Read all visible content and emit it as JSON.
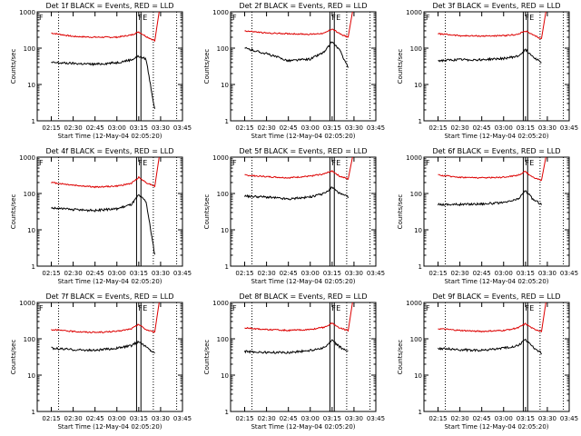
{
  "figure": {
    "shared": {
      "xlabel": "Start Time (12-May-04 02:05:20)",
      "ylabel": "Counts/sec",
      "xticks": [
        "02:15",
        "02:30",
        "02:45",
        "03:00",
        "03:15",
        "03:30",
        "03:45"
      ],
      "yticks": [
        "1",
        "10",
        "100",
        "1000"
      ],
      "corner_markers": [
        "F",
        "E"
      ],
      "colors": {
        "events": "#000000",
        "lld": "#dd0000",
        "axes": "#000000",
        "background": "#ffffff"
      }
    }
  },
  "chart_data": [
    {
      "type": "line",
      "title": "Det 1f BLACK = Events, RED = LLD",
      "xlabel": "Start Time (12-May-04 02:05:20)",
      "ylabel": "Counts/sec",
      "x_range": [
        "02:05",
        "03:45"
      ],
      "ylim": [
        1,
        1000
      ],
      "yscale": "log",
      "x": [
        "02:15",
        "02:30",
        "02:45",
        "03:00",
        "03:10",
        "03:15",
        "03:20",
        "03:26"
      ],
      "series": [
        {
          "name": "RED = LLD",
          "color": "#dd0000",
          "values": [
            260,
            210,
            200,
            200,
            230,
            280,
            210,
            160
          ]
        },
        {
          "name": "BLACK = Events",
          "color": "#000000",
          "values": [
            40,
            38,
            36,
            40,
            48,
            60,
            50,
            2
          ]
        }
      ],
      "markers": [
        "F",
        "E"
      ],
      "grid": false
    },
    {
      "type": "line",
      "title": "Det 2f BLACK = Events, RED = LLD",
      "xlabel": "Start Time (12-May-04 02:05:20)",
      "ylabel": "Counts/sec",
      "x_range": [
        "02:05",
        "03:45"
      ],
      "ylim": [
        1,
        1000
      ],
      "yscale": "log",
      "x": [
        "02:15",
        "02:30",
        "02:45",
        "03:00",
        "03:10",
        "03:15",
        "03:20",
        "03:26"
      ],
      "series": [
        {
          "name": "RED = LLD",
          "color": "#dd0000",
          "values": [
            300,
            260,
            250,
            240,
            260,
            340,
            250,
            200
          ]
        },
        {
          "name": "BLACK = Events",
          "color": "#000000",
          "values": [
            100,
            70,
            45,
            50,
            80,
            150,
            90,
            30
          ]
        }
      ],
      "markers": [
        "F",
        "E"
      ],
      "grid": false
    },
    {
      "type": "line",
      "title": "Det 3f BLACK = Events, RED = LLD",
      "xlabel": "Start Time (12-May-04 02:05:20)",
      "ylabel": "Counts/sec",
      "x_range": [
        "02:05",
        "03:45"
      ],
      "ylim": [
        1,
        1000
      ],
      "yscale": "log",
      "x": [
        "02:15",
        "02:30",
        "02:45",
        "03:00",
        "03:10",
        "03:15",
        "03:20",
        "03:26"
      ],
      "series": [
        {
          "name": "RED = LLD",
          "color": "#dd0000",
          "values": [
            250,
            220,
            215,
            220,
            240,
            300,
            230,
            180
          ]
        },
        {
          "name": "BLACK = Events",
          "color": "#000000",
          "values": [
            45,
            48,
            48,
            52,
            60,
            90,
            60,
            40
          ]
        }
      ],
      "markers": [
        "F",
        "E"
      ],
      "grid": false
    },
    {
      "type": "line",
      "title": "Det 4f BLACK = Events, RED = LLD",
      "xlabel": "Start Time (12-May-04 02:05:20)",
      "ylabel": "Counts/sec",
      "x_range": [
        "02:05",
        "03:45"
      ],
      "ylim": [
        1,
        1000
      ],
      "yscale": "log",
      "x": [
        "02:15",
        "02:30",
        "02:45",
        "03:00",
        "03:10",
        "03:15",
        "03:20",
        "03:26"
      ],
      "series": [
        {
          "name": "RED = LLD",
          "color": "#dd0000",
          "values": [
            200,
            170,
            150,
            160,
            190,
            280,
            200,
            160
          ]
        },
        {
          "name": "BLACK = Events",
          "color": "#000000",
          "values": [
            40,
            36,
            34,
            38,
            50,
            90,
            60,
            2
          ]
        }
      ],
      "markers": [
        "F",
        "E"
      ],
      "grid": false
    },
    {
      "type": "line",
      "title": "Det 5f BLACK = Events, RED = LLD",
      "xlabel": "Start Time (12-May-04 02:05:20)",
      "ylabel": "Counts/sec",
      "x_range": [
        "02:05",
        "03:45"
      ],
      "ylim": [
        1,
        1000
      ],
      "yscale": "log",
      "x": [
        "02:15",
        "02:30",
        "02:45",
        "03:00",
        "03:10",
        "03:15",
        "03:20",
        "03:26"
      ],
      "series": [
        {
          "name": "RED = LLD",
          "color": "#dd0000",
          "values": [
            320,
            290,
            270,
            300,
            350,
            420,
            300,
            250
          ]
        },
        {
          "name": "BLACK = Events",
          "color": "#000000",
          "values": [
            85,
            80,
            70,
            80,
            100,
            150,
            100,
            80
          ]
        }
      ],
      "markers": [
        "F",
        "E"
      ],
      "grid": false
    },
    {
      "type": "line",
      "title": "Det 6f BLACK = Events, RED = LLD",
      "xlabel": "Start Time (12-May-04 02:05:20)",
      "ylabel": "Counts/sec",
      "x_range": [
        "02:05",
        "03:45"
      ],
      "ylim": [
        1,
        1000
      ],
      "yscale": "log",
      "x": [
        "02:15",
        "02:30",
        "02:45",
        "03:00",
        "03:10",
        "03:15",
        "03:20",
        "03:26"
      ],
      "series": [
        {
          "name": "RED = LLD",
          "color": "#dd0000",
          "values": [
            320,
            280,
            270,
            280,
            320,
            400,
            280,
            230
          ]
        },
        {
          "name": "BLACK = Events",
          "color": "#000000",
          "values": [
            50,
            50,
            52,
            55,
            70,
            120,
            70,
            50
          ]
        }
      ],
      "markers": [
        "F",
        "E"
      ],
      "grid": false
    },
    {
      "type": "line",
      "title": "Det 7f BLACK = Events, RED = LLD",
      "xlabel": "Start Time (12-May-04 02:05:20)",
      "ylabel": "Counts/sec",
      "x_range": [
        "02:05",
        "03:45"
      ],
      "ylim": [
        1,
        1000
      ],
      "yscale": "log",
      "x": [
        "02:15",
        "02:30",
        "02:45",
        "03:00",
        "03:10",
        "03:15",
        "03:20",
        "03:26"
      ],
      "series": [
        {
          "name": "RED = LLD",
          "color": "#dd0000",
          "values": [
            180,
            160,
            150,
            160,
            190,
            250,
            180,
            150
          ]
        },
        {
          "name": "BLACK = Events",
          "color": "#000000",
          "values": [
            55,
            50,
            48,
            55,
            65,
            85,
            60,
            40
          ]
        }
      ],
      "markers": [
        "F",
        "E"
      ],
      "grid": false
    },
    {
      "type": "line",
      "title": "Det 8f BLACK = Events, RED = LLD",
      "xlabel": "Start Time (12-May-04 02:05:20)",
      "ylabel": "Counts/sec",
      "x_range": [
        "02:05",
        "03:45"
      ],
      "ylim": [
        1,
        1000
      ],
      "yscale": "log",
      "x": [
        "02:15",
        "02:30",
        "02:45",
        "03:00",
        "03:10",
        "03:15",
        "03:20",
        "03:26"
      ],
      "series": [
        {
          "name": "RED = LLD",
          "color": "#dd0000",
          "values": [
            200,
            180,
            170,
            180,
            210,
            270,
            200,
            170
          ]
        },
        {
          "name": "BLACK = Events",
          "color": "#000000",
          "values": [
            45,
            42,
            42,
            48,
            58,
            90,
            60,
            45
          ]
        }
      ],
      "markers": [
        "F",
        "E"
      ],
      "grid": false
    },
    {
      "type": "line",
      "title": "Det 9f BLACK = Events, RED = LLD",
      "xlabel": "Start Time (12-May-04 02:05:20)",
      "ylabel": "Counts/sec",
      "x_range": [
        "02:05",
        "03:45"
      ],
      "ylim": [
        1,
        1000
      ],
      "yscale": "log",
      "x": [
        "02:15",
        "02:30",
        "02:45",
        "03:00",
        "03:10",
        "03:15",
        "03:20",
        "03:26"
      ],
      "series": [
        {
          "name": "RED = LLD",
          "color": "#dd0000",
          "values": [
            190,
            170,
            160,
            170,
            200,
            260,
            190,
            160
          ]
        },
        {
          "name": "BLACK = Events",
          "color": "#000000",
          "values": [
            55,
            50,
            48,
            55,
            65,
            95,
            60,
            40
          ]
        }
      ],
      "markers": [
        "F",
        "E"
      ],
      "grid": false
    }
  ]
}
